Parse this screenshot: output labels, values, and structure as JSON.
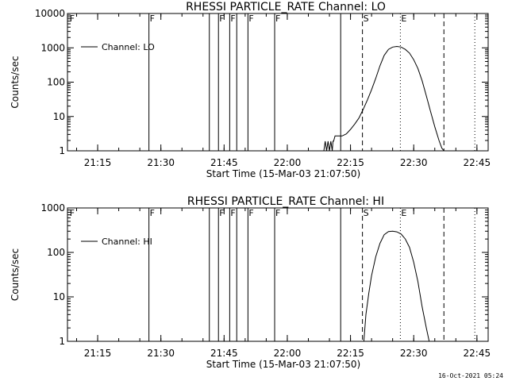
{
  "footer_timestamp": "16-Oct-2021 05:24",
  "chart_data": [
    {
      "type": "line",
      "title": "RHESSI PARTICLE_RATE Channel: LO",
      "xlabel": "Start Time (15-Mar-03 21:07:50)",
      "ylabel": "Counts/sec",
      "y_scale": "log",
      "xlim": [
        "21:07:50",
        "22:47:40"
      ],
      "ylim": [
        1,
        10000
      ],
      "x_ticks": [
        "21:15",
        "21:30",
        "21:45",
        "22:00",
        "22:15",
        "22:30",
        "22:45"
      ],
      "y_ticks": [
        "1",
        "10",
        "100",
        "1000",
        "10000"
      ],
      "legend": {
        "placement": "top-left",
        "entries": [
          "Channel: LO"
        ]
      },
      "flag_markers": [
        {
          "label": "F",
          "time": "21:08:10",
          "style": "none"
        },
        {
          "label": "F",
          "time": "21:27:10",
          "style": "solid"
        },
        {
          "label": "",
          "time": "21:41:30",
          "style": "solid"
        },
        {
          "label": "F",
          "time": "21:43:40",
          "style": "solid"
        },
        {
          "label": "F",
          "time": "21:46:20",
          "style": "solid"
        },
        {
          "label": "",
          "time": "21:48:00",
          "style": "solid"
        },
        {
          "label": "F",
          "time": "21:50:40",
          "style": "solid"
        },
        {
          "label": "F",
          "time": "21:57:00",
          "style": "solid"
        },
        {
          "label": "",
          "time": "22:12:40",
          "style": "solid"
        },
        {
          "label": "S",
          "time": "22:17:50",
          "style": "dashed"
        },
        {
          "label": "E",
          "time": "22:26:50",
          "style": "dotted"
        },
        {
          "label": "",
          "time": "22:37:10",
          "style": "dashed"
        },
        {
          "label": "",
          "time": "22:44:30",
          "style": "dotted"
        }
      ],
      "series": [
        {
          "name": "Channel: LO",
          "points": [
            [
              "22:08:40",
              1
            ],
            [
              "22:09:00",
              1.9
            ],
            [
              "22:09:20",
              1
            ],
            [
              "22:09:40",
              1.9
            ],
            [
              "22:10:00",
              1
            ],
            [
              "22:10:20",
              1.9
            ],
            [
              "22:10:40",
              1
            ],
            [
              "22:10:50",
              1.9
            ],
            [
              "22:11:00",
              1.9
            ],
            [
              "22:11:20",
              2.7
            ],
            [
              "22:13:00",
              2.7
            ],
            [
              "22:14:00",
              3.1
            ],
            [
              "22:15:00",
              4.2
            ],
            [
              "22:16:00",
              6
            ],
            [
              "22:17:00",
              9
            ],
            [
              "22:18:00",
              16
            ],
            [
              "22:19:00",
              30
            ],
            [
              "22:20:00",
              60
            ],
            [
              "22:21:00",
              130
            ],
            [
              "22:22:00",
              300
            ],
            [
              "22:23:00",
              600
            ],
            [
              "22:24:00",
              900
            ],
            [
              "22:25:00",
              1050
            ],
            [
              "22:26:00",
              1100
            ],
            [
              "22:27:00",
              1050
            ],
            [
              "22:28:00",
              900
            ],
            [
              "22:29:00",
              700
            ],
            [
              "22:30:00",
              450
            ],
            [
              "22:31:00",
              250
            ],
            [
              "22:32:00",
              110
            ],
            [
              "22:33:00",
              40
            ],
            [
              "22:34:00",
              14
            ],
            [
              "22:35:00",
              5
            ],
            [
              "22:36:00",
              2
            ],
            [
              "22:36:40",
              1.2
            ],
            [
              "22:37:10",
              1
            ]
          ]
        }
      ]
    },
    {
      "type": "line",
      "title": "RHESSI PARTICLE_RATE Channel: HI",
      "xlabel": "Start Time (15-Mar-03 21:07:50)",
      "ylabel": "Counts/sec",
      "y_scale": "log",
      "xlim": [
        "21:07:50",
        "22:47:40"
      ],
      "ylim": [
        1,
        1000
      ],
      "x_ticks": [
        "21:15",
        "21:30",
        "21:45",
        "22:00",
        "22:15",
        "22:30",
        "22:45"
      ],
      "y_ticks": [
        "1",
        "10",
        "100",
        "1000"
      ],
      "legend": {
        "placement": "top-left",
        "entries": [
          "Channel: HI"
        ]
      },
      "flag_markers": [
        {
          "label": "F",
          "time": "21:08:10",
          "style": "none"
        },
        {
          "label": "F",
          "time": "21:27:10",
          "style": "solid"
        },
        {
          "label": "",
          "time": "21:41:30",
          "style": "solid"
        },
        {
          "label": "F",
          "time": "21:43:40",
          "style": "solid"
        },
        {
          "label": "F",
          "time": "21:46:20",
          "style": "solid"
        },
        {
          "label": "",
          "time": "21:48:00",
          "style": "solid"
        },
        {
          "label": "F",
          "time": "21:50:40",
          "style": "solid"
        },
        {
          "label": "F",
          "time": "21:57:00",
          "style": "solid"
        },
        {
          "label": "",
          "time": "22:12:40",
          "style": "solid"
        },
        {
          "label": "S",
          "time": "22:17:50",
          "style": "dashed"
        },
        {
          "label": "E",
          "time": "22:26:50",
          "style": "dotted"
        },
        {
          "label": "",
          "time": "22:37:10",
          "style": "dashed"
        },
        {
          "label": "",
          "time": "22:44:30",
          "style": "dotted"
        }
      ],
      "series": [
        {
          "name": "Channel: HI",
          "points": [
            [
              "22:18:10",
              1
            ],
            [
              "22:18:40",
              4
            ],
            [
              "22:19:20",
              12
            ],
            [
              "22:20:00",
              30
            ],
            [
              "22:21:00",
              80
            ],
            [
              "22:22:00",
              160
            ],
            [
              "22:23:00",
              250
            ],
            [
              "22:24:00",
              295
            ],
            [
              "22:25:00",
              300
            ],
            [
              "22:26:00",
              290
            ],
            [
              "22:27:00",
              260
            ],
            [
              "22:28:00",
              200
            ],
            [
              "22:29:00",
              130
            ],
            [
              "22:30:00",
              60
            ],
            [
              "22:31:00",
              22
            ],
            [
              "22:32:00",
              6
            ],
            [
              "22:33:00",
              2
            ],
            [
              "22:33:40",
              1
            ]
          ]
        }
      ]
    }
  ]
}
